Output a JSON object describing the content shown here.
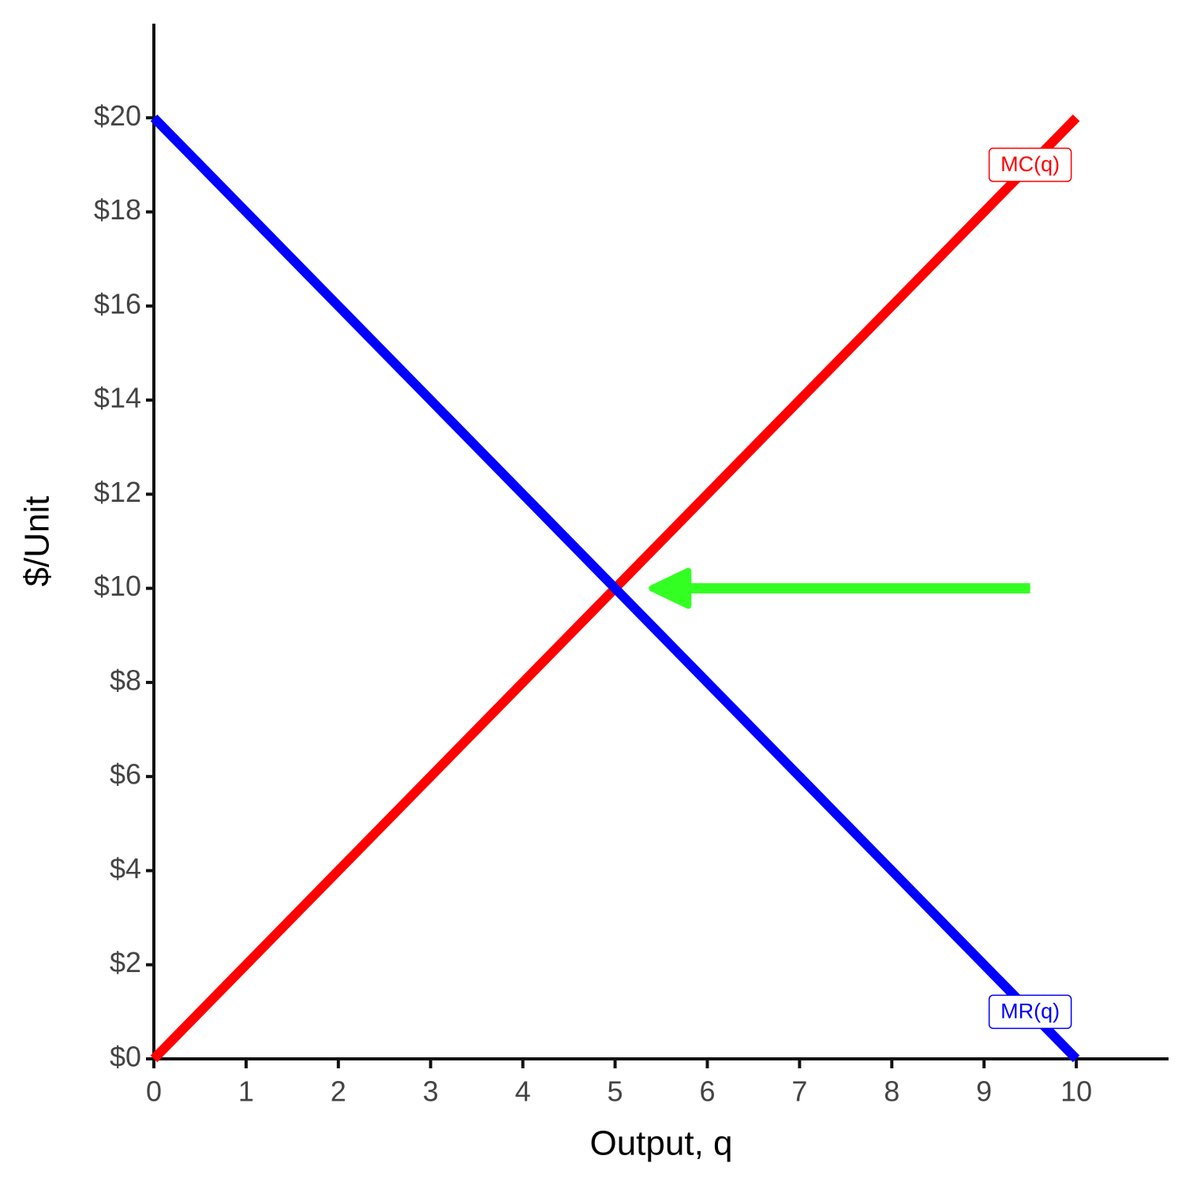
{
  "chart_data": {
    "type": "line",
    "x_label": "Output, q",
    "y_label": "$/Unit",
    "x": [
      0,
      10
    ],
    "series": [
      {
        "name": "MC(q)",
        "color": "#ff0000",
        "values": [
          0,
          20
        ],
        "label_position": [
          9.5,
          19
        ]
      },
      {
        "name": "MR(q)",
        "color": "#0000ff",
        "values": [
          20,
          0
        ],
        "label_position": [
          9.5,
          1
        ]
      }
    ],
    "arrow": {
      "from": [
        9.5,
        10
      ],
      "to": [
        5.4,
        10
      ],
      "color": "#33ff22"
    },
    "xlim": [
      0,
      11
    ],
    "ylim": [
      0,
      22
    ],
    "xticks": [
      0,
      1,
      2,
      3,
      4,
      5,
      6,
      7,
      8,
      9,
      10
    ],
    "yticks": [
      {
        "value": 0,
        "label": "$0"
      },
      {
        "value": 2,
        "label": "$2"
      },
      {
        "value": 4,
        "label": "$4"
      },
      {
        "value": 6,
        "label": "$6"
      },
      {
        "value": 8,
        "label": "$8"
      },
      {
        "value": 10,
        "label": "$10"
      },
      {
        "value": 12,
        "label": "$12"
      },
      {
        "value": 14,
        "label": "$14"
      },
      {
        "value": 16,
        "label": "$16"
      },
      {
        "value": 18,
        "label": "$18"
      },
      {
        "value": 20,
        "label": "$20"
      }
    ],
    "grid": false
  }
}
